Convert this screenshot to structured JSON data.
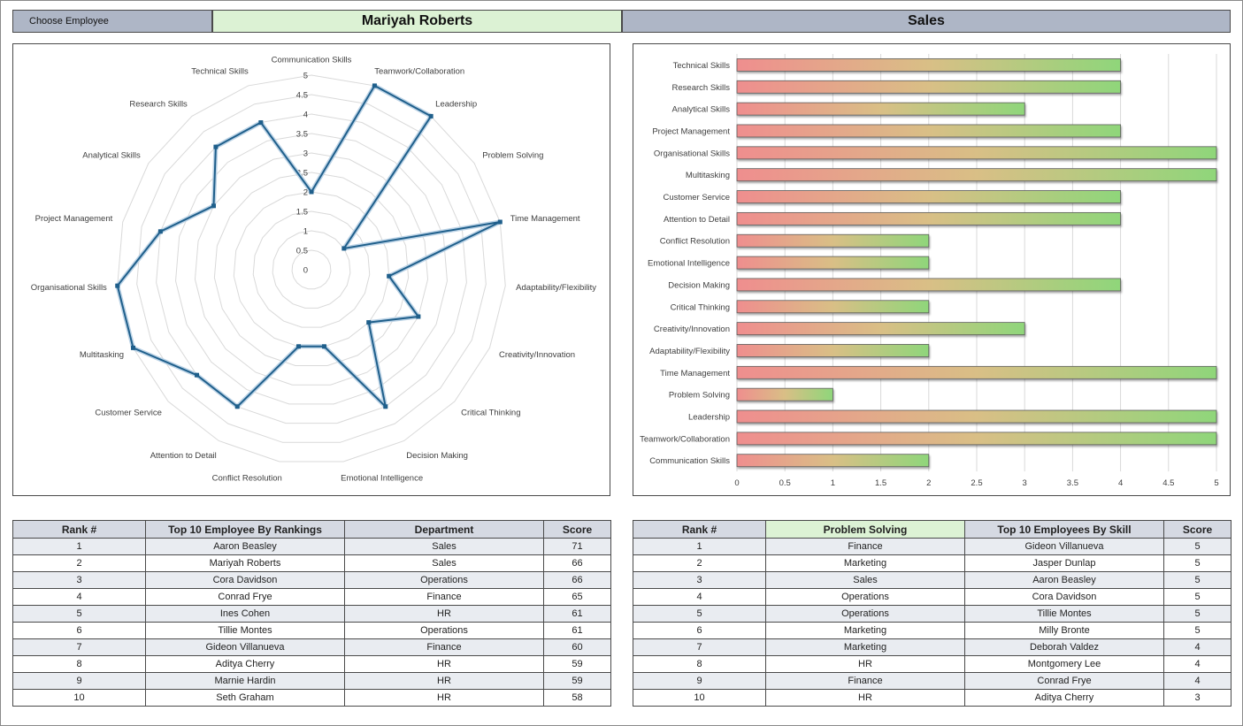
{
  "header": {
    "choose_label": "Choose Employee",
    "employee_name": "Mariyah Roberts",
    "department": "Sales"
  },
  "colors": {
    "header_blue": "#aeb6c6",
    "header_green": "#dcf2d4",
    "radar_line": "#1f5f8b",
    "bar_start": "#ef8e8e",
    "bar_end": "#8fd67a"
  },
  "chart_data": [
    {
      "type": "radar",
      "categories": [
        "Communication Skills",
        "Teamwork/Collaboration",
        "Leadership",
        "Problem Solving",
        "Time Management",
        "Adaptability/Flexibility",
        "Creativity/Innovation",
        "Critical Thinking",
        "Decision Making",
        "Emotional Intelligence",
        "Conflict Resolution",
        "Attention to Detail",
        "Customer Service",
        "Multitasking",
        "Organisational Skills",
        "Project Management",
        "Analytical Skills",
        "Research Skills",
        "Technical Skills"
      ],
      "values": [
        2,
        5,
        5,
        1,
        5,
        2,
        3,
        2,
        4,
        2,
        2,
        4,
        4,
        5,
        5,
        4,
        3,
        4,
        4
      ],
      "rmax": 5,
      "ticks": [
        "0",
        "0.5",
        "1",
        "1.5",
        "2",
        "2.5",
        "3",
        "3.5",
        "4",
        "4.5",
        "5"
      ]
    },
    {
      "type": "bar",
      "orientation": "horizontal",
      "categories": [
        "Technical Skills",
        "Research Skills",
        "Analytical Skills",
        "Project Management",
        "Organisational Skills",
        "Multitasking",
        "Customer Service",
        "Attention to Detail",
        "Conflict Resolution",
        "Emotional Intelligence",
        "Decision Making",
        "Critical Thinking",
        "Creativity/Innovation",
        "Adaptability/Flexibility",
        "Time Management",
        "Problem Solving",
        "Leadership",
        "Teamwork/Collaboration",
        "Communication Skills"
      ],
      "values": [
        4,
        4,
        3,
        4,
        5,
        5,
        4,
        4,
        2,
        2,
        4,
        2,
        3,
        2,
        5,
        1,
        5,
        5,
        2
      ],
      "xlim": [
        0,
        5
      ],
      "ticks": [
        "0",
        "0.5",
        "1",
        "1.5",
        "2",
        "2.5",
        "3",
        "3.5",
        "4",
        "4.5",
        "5"
      ],
      "grid": true
    }
  ],
  "rank_table": {
    "headers": [
      "Rank #",
      "Top 10 Employee By Rankings",
      "Department",
      "Score"
    ],
    "rows": [
      [
        "1",
        "Aaron Beasley",
        "Sales",
        "71"
      ],
      [
        "2",
        "Mariyah Roberts",
        "Sales",
        "66"
      ],
      [
        "3",
        "Cora Davidson",
        "Operations",
        "66"
      ],
      [
        "4",
        "Conrad Frye",
        "Finance",
        "65"
      ],
      [
        "5",
        "Ines Cohen",
        "HR",
        "61"
      ],
      [
        "6",
        "Tillie Montes",
        "Operations",
        "61"
      ],
      [
        "7",
        "Gideon Villanueva",
        "Finance",
        "60"
      ],
      [
        "8",
        "Aditya Cherry",
        "HR",
        "59"
      ],
      [
        "9",
        "Marnie Hardin",
        "HR",
        "59"
      ],
      [
        "10",
        "Seth Graham",
        "HR",
        "58"
      ]
    ]
  },
  "skill_table": {
    "headers": [
      "Rank #",
      "Problem Solving",
      "Top 10 Employees By Skill",
      "Score"
    ],
    "rows": [
      [
        "1",
        "Finance",
        "Gideon Villanueva",
        "5"
      ],
      [
        "2",
        "Marketing",
        "Jasper Dunlap",
        "5"
      ],
      [
        "3",
        "Sales",
        "Aaron Beasley",
        "5"
      ],
      [
        "4",
        "Operations",
        "Cora Davidson",
        "5"
      ],
      [
        "5",
        "Operations",
        "Tillie Montes",
        "5"
      ],
      [
        "6",
        "Marketing",
        "Milly Bronte",
        "5"
      ],
      [
        "7",
        "Marketing",
        "Deborah Valdez",
        "4"
      ],
      [
        "8",
        "HR",
        "Montgomery Lee",
        "4"
      ],
      [
        "9",
        "Finance",
        "Conrad Frye",
        "4"
      ],
      [
        "10",
        "HR",
        "Aditya Cherry",
        "3"
      ]
    ]
  }
}
